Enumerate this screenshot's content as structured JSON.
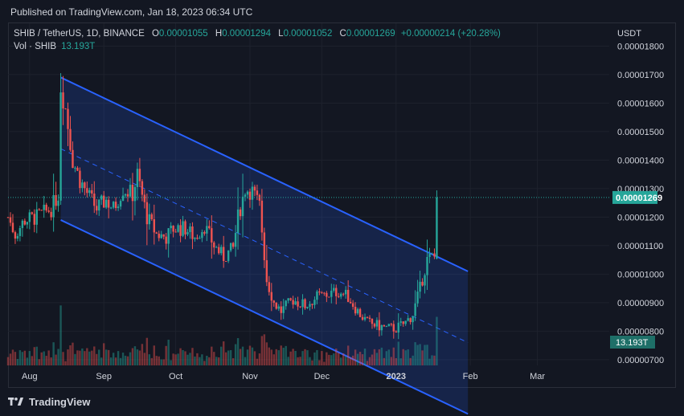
{
  "header": {
    "published": "Published on TradingView.com, Jan 18, 2023 06:34 UTC"
  },
  "legend": {
    "symbol": "SHIB / TetherUS, 1D, BINANCE",
    "o_label": "O",
    "o_value": "0.00001055",
    "h_label": "H",
    "h_value": "0.00001294",
    "l_label": "L",
    "l_value": "0.00001052",
    "c_label": "C",
    "c_value": "0.00001269",
    "change": "+0.00000214 (+20.28%)",
    "vol_label": "Vol · SHIB",
    "vol_value": "13.193T"
  },
  "footer": {
    "brand": "TradingView"
  },
  "colors": {
    "up": "#26a69a",
    "down": "#ef5350",
    "channel": "#2962ff",
    "background": "#131722",
    "grid": "#1e222d",
    "text": "#d1d4dc"
  },
  "chart_data": {
    "type": "candlestick",
    "symbol": "SHIB / TetherUS",
    "interval": "1D",
    "exchange": "BINANCE",
    "currency_label": "USDT",
    "ylim": [
      6.8e-06,
      1.88e-05
    ],
    "y_ticks": [
      "0.00000700",
      "0.00000800",
      "0.00000900",
      "0.00001000",
      "0.00001100",
      "0.00001200",
      "0.00001300",
      "0.00001400",
      "0.00001500",
      "0.00001600",
      "0.00001700",
      "0.00001800"
    ],
    "x_ticks": [
      {
        "label": "Aug",
        "date": "2022-08-01"
      },
      {
        "label": "Sep",
        "date": "2022-09-01"
      },
      {
        "label": "Oct",
        "date": "2022-10-01"
      },
      {
        "label": "Nov",
        "date": "2022-11-01"
      },
      {
        "label": "Dec",
        "date": "2022-12-01"
      },
      {
        "label": "2023",
        "date": "2023-01-01"
      },
      {
        "label": "Feb",
        "date": "2023-02-01"
      },
      {
        "label": "Mar",
        "date": "2023-03-01"
      }
    ],
    "xlim": [
      "2022-07-23",
      "2023-03-31"
    ],
    "last_price_label": "0.00001269",
    "last_volume_label": "13.193T",
    "close_path": [
      [
        "2022-07-23",
        1.2e-05
      ],
      [
        "2022-07-26",
        1.14e-05
      ],
      [
        "2022-07-30",
        1.19e-05
      ],
      [
        "2022-08-04",
        1.2e-05
      ],
      [
        "2022-08-10",
        1.23e-05
      ],
      [
        "2022-08-13",
        1.28e-05
      ],
      [
        "2022-08-14",
        1.66e-05
      ],
      [
        "2022-08-16",
        1.58e-05
      ],
      [
        "2022-08-19",
        1.4e-05
      ],
      [
        "2022-08-22",
        1.33e-05
      ],
      [
        "2022-08-26",
        1.27e-05
      ],
      [
        "2022-08-29",
        1.23e-05
      ],
      [
        "2022-09-02",
        1.26e-05
      ],
      [
        "2022-09-05",
        1.23e-05
      ],
      [
        "2022-09-09",
        1.3e-05
      ],
      [
        "2022-09-13",
        1.28e-05
      ],
      [
        "2022-09-15",
        1.35e-05
      ],
      [
        "2022-09-19",
        1.2e-05
      ],
      [
        "2022-09-23",
        1.14e-05
      ],
      [
        "2022-09-27",
        1.13e-05
      ],
      [
        "2022-09-30",
        1.16e-05
      ],
      [
        "2022-10-05",
        1.16e-05
      ],
      [
        "2022-10-09",
        1.13e-05
      ],
      [
        "2022-10-13",
        1.17e-05
      ],
      [
        "2022-10-17",
        1.1e-05
      ],
      [
        "2022-10-21",
        1.06e-05
      ],
      [
        "2022-10-25",
        1.09e-05
      ],
      [
        "2022-10-27",
        1.2e-05
      ],
      [
        "2022-10-30",
        1.3e-05
      ],
      [
        "2022-11-02",
        1.29e-05
      ],
      [
        "2022-11-05",
        1.24e-05
      ],
      [
        "2022-11-08",
        9.8e-06
      ],
      [
        "2022-11-11",
        9e-06
      ],
      [
        "2022-11-14",
        8.7e-06
      ],
      [
        "2022-11-19",
        9.1e-06
      ],
      [
        "2022-11-24",
        8.9e-06
      ],
      [
        "2022-11-29",
        9.2e-06
      ],
      [
        "2022-12-04",
        9.3e-06
      ],
      [
        "2022-12-08",
        9.4e-06
      ],
      [
        "2022-12-12",
        9.2e-06
      ],
      [
        "2022-12-16",
        8.7e-06
      ],
      [
        "2022-12-20",
        8.3e-06
      ],
      [
        "2022-12-24",
        8.2e-06
      ],
      [
        "2022-12-28",
        8.1e-06
      ],
      [
        "2023-01-01",
        8.1e-06
      ],
      [
        "2023-01-05",
        8.3e-06
      ],
      [
        "2023-01-08",
        8.6e-06
      ],
      [
        "2023-01-11",
        9.5e-06
      ],
      [
        "2023-01-14",
        1.05e-05
      ],
      [
        "2023-01-16",
        1.06e-05
      ],
      [
        "2023-01-17",
        1.06e-05
      ],
      [
        "2023-01-18",
        1.269e-05
      ]
    ],
    "drawings": [
      {
        "type": "parallel_channel",
        "upper": [
          [
            "2022-08-14",
            1.69e-05
          ],
          [
            "2023-01-31",
            1.01e-05
          ]
        ],
        "lower": [
          [
            "2022-08-14",
            1.19e-05
          ],
          [
            "2023-01-31",
            5.1e-06
          ]
        ],
        "middle_dashed": true
      }
    ],
    "last_ohlc": {
      "open": 1.055e-05,
      "high": 1.294e-05,
      "low": 1.052e-05,
      "close": 1.269e-05
    }
  }
}
